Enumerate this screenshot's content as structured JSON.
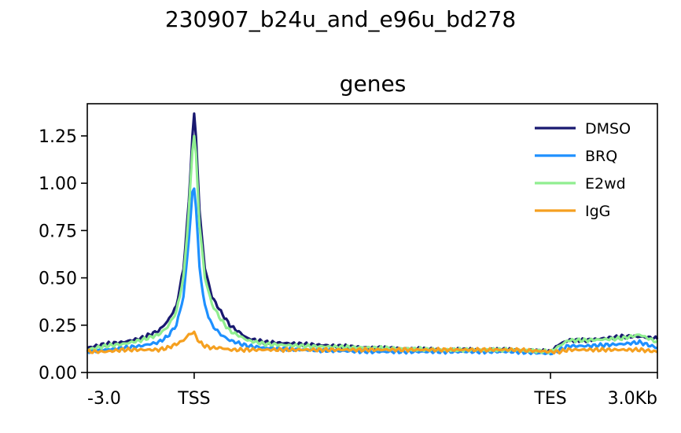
{
  "figure": {
    "suptitle": "230907_b24u_and_e96u_bd278"
  },
  "chart_data": {
    "type": "line",
    "title": "genes",
    "xlabel": "",
    "ylabel": "",
    "ylim": [
      0,
      1.42
    ],
    "x_tick_labels": [
      "-3.0",
      "TSS",
      "TES",
      "3.0Kb"
    ],
    "y_tick_labels": [
      "0.00",
      "0.25",
      "0.50",
      "0.75",
      "1.00",
      "1.25"
    ],
    "y_ticks": [
      0,
      0.25,
      0.5,
      0.75,
      1.0,
      1.25
    ],
    "legend_position": "top-right",
    "grid": false,
    "x_regions": [
      {
        "from": "-3.0",
        "to": "TSS",
        "bins": 60
      },
      {
        "from": "TSS",
        "to": "TES",
        "bins": 200
      },
      {
        "from": "TES",
        "to": "3.0Kb",
        "bins": 60
      }
    ],
    "series": [
      {
        "name": "DMSO",
        "color": "#191970",
        "x": [
          0,
          10,
          20,
          30,
          40,
          45,
          50,
          54,
          57,
          59,
          60,
          61,
          63,
          66,
          70,
          75,
          80,
          90,
          100,
          120,
          160,
          200,
          240,
          260,
          265,
          270,
          280,
          300,
          310,
          320
        ],
        "y": [
          0.13,
          0.15,
          0.16,
          0.18,
          0.22,
          0.27,
          0.35,
          0.55,
          0.9,
          1.25,
          1.36,
          1.25,
          0.85,
          0.55,
          0.4,
          0.32,
          0.25,
          0.18,
          0.16,
          0.15,
          0.13,
          0.12,
          0.12,
          0.11,
          0.15,
          0.17,
          0.17,
          0.19,
          0.19,
          0.18
        ]
      },
      {
        "name": "BRQ",
        "color": "#1e90ff",
        "x": [
          0,
          10,
          20,
          30,
          40,
          45,
          50,
          54,
          57,
          59,
          60,
          61,
          63,
          66,
          70,
          75,
          80,
          90,
          100,
          120,
          160,
          200,
          240,
          260,
          265,
          270,
          280,
          300,
          310,
          320
        ],
        "y": [
          0.11,
          0.12,
          0.13,
          0.14,
          0.16,
          0.19,
          0.25,
          0.4,
          0.7,
          0.95,
          0.97,
          0.88,
          0.55,
          0.35,
          0.25,
          0.2,
          0.17,
          0.14,
          0.13,
          0.12,
          0.11,
          0.11,
          0.11,
          0.1,
          0.12,
          0.14,
          0.14,
          0.15,
          0.16,
          0.13
        ]
      },
      {
        "name": "E2wd",
        "color": "#90ee90",
        "x": [
          0,
          10,
          20,
          30,
          40,
          45,
          50,
          54,
          57,
          59,
          60,
          61,
          63,
          66,
          70,
          75,
          80,
          90,
          100,
          120,
          160,
          200,
          240,
          260,
          265,
          270,
          280,
          300,
          310,
          320
        ],
        "y": [
          0.12,
          0.14,
          0.15,
          0.17,
          0.2,
          0.24,
          0.32,
          0.5,
          0.85,
          1.18,
          1.25,
          1.15,
          0.78,
          0.5,
          0.36,
          0.28,
          0.22,
          0.17,
          0.15,
          0.14,
          0.13,
          0.12,
          0.12,
          0.11,
          0.14,
          0.17,
          0.17,
          0.18,
          0.2,
          0.16
        ]
      },
      {
        "name": "IgG",
        "color": "#f5a020",
        "x": [
          0,
          10,
          20,
          30,
          40,
          45,
          50,
          54,
          57,
          59,
          60,
          61,
          63,
          66,
          70,
          75,
          80,
          90,
          100,
          120,
          160,
          200,
          240,
          260,
          265,
          270,
          280,
          300,
          310,
          320
        ],
        "y": [
          0.11,
          0.11,
          0.12,
          0.12,
          0.12,
          0.13,
          0.15,
          0.17,
          0.2,
          0.21,
          0.21,
          0.19,
          0.16,
          0.14,
          0.13,
          0.13,
          0.12,
          0.12,
          0.12,
          0.12,
          0.12,
          0.12,
          0.12,
          0.11,
          0.11,
          0.12,
          0.12,
          0.12,
          0.12,
          0.11
        ]
      }
    ]
  }
}
